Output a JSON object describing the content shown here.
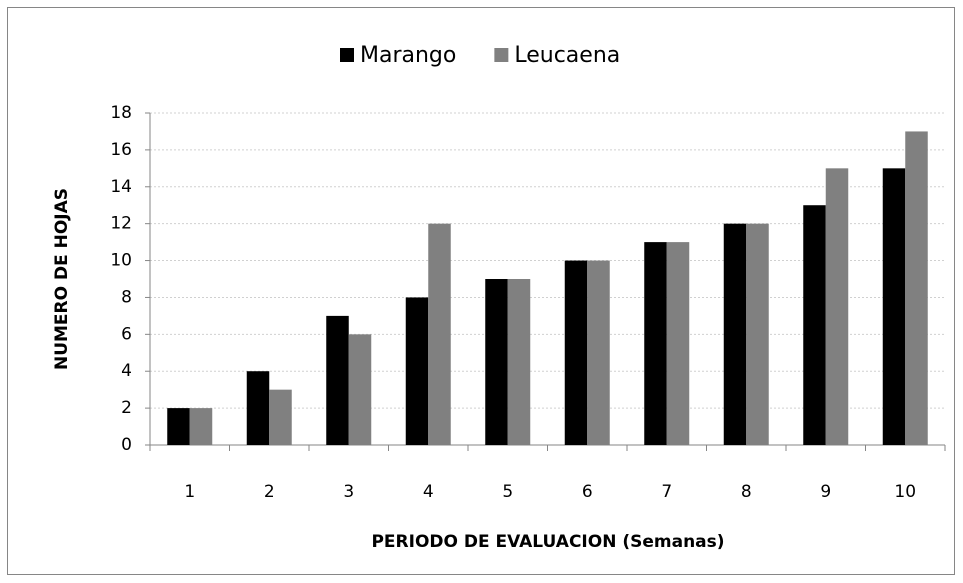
{
  "chart_data": {
    "type": "bar",
    "x_label": "PERIODO DE EVALUACION (Semanas)",
    "y_label": "NUMERO DE HOJAS",
    "categories": [
      "1",
      "2",
      "3",
      "4",
      "5",
      "6",
      "7",
      "8",
      "9",
      "10"
    ],
    "series": [
      {
        "name": "Marango",
        "color": "#000000",
        "values": [
          2,
          4,
          7,
          8,
          9,
          10,
          11,
          12,
          13,
          15
        ]
      },
      {
        "name": "Leucaena",
        "color": "#808080",
        "values": [
          2,
          3,
          6,
          12,
          9,
          10,
          11,
          12,
          15,
          17
        ]
      }
    ],
    "ylim": [
      0,
      18
    ],
    "yticks": [
      0,
      2,
      4,
      6,
      8,
      10,
      12,
      14,
      16,
      18
    ],
    "grid": true,
    "legend": "top"
  }
}
